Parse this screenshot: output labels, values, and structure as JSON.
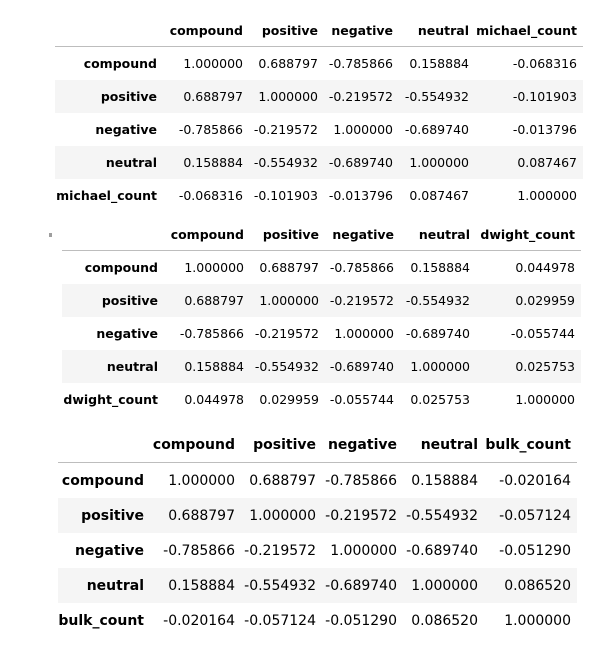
{
  "tables": [
    {
      "headers": [
        "",
        "compound",
        "positive",
        "negative",
        "neutral",
        "michael_count"
      ],
      "rows": [
        {
          "label": "compound",
          "values": [
            "1.000000",
            "0.688797",
            "-0.785866",
            "0.158884",
            "-0.068316"
          ]
        },
        {
          "label": "positive",
          "values": [
            "0.688797",
            "1.000000",
            "-0.219572",
            "-0.554932",
            "-0.101903"
          ]
        },
        {
          "label": "negative",
          "values": [
            "-0.785866",
            "-0.219572",
            "1.000000",
            "-0.689740",
            "-0.013796"
          ]
        },
        {
          "label": "neutral",
          "values": [
            "0.158884",
            "-0.554932",
            "-0.689740",
            "1.000000",
            "0.087467"
          ]
        },
        {
          "label": "michael_count",
          "values": [
            "-0.068316",
            "-0.101903",
            "-0.013796",
            "0.087467",
            "1.000000"
          ]
        }
      ]
    },
    {
      "headers": [
        "",
        "compound",
        "positive",
        "negative",
        "neutral",
        "dwight_count"
      ],
      "rows": [
        {
          "label": "compound",
          "values": [
            "1.000000",
            "0.688797",
            "-0.785866",
            "0.158884",
            "0.044978"
          ]
        },
        {
          "label": "positive",
          "values": [
            "0.688797",
            "1.000000",
            "-0.219572",
            "-0.554932",
            "0.029959"
          ]
        },
        {
          "label": "negative",
          "values": [
            "-0.785866",
            "-0.219572",
            "1.000000",
            "-0.689740",
            "-0.055744"
          ]
        },
        {
          "label": "neutral",
          "values": [
            "0.158884",
            "-0.554932",
            "-0.689740",
            "1.000000",
            "0.025753"
          ]
        },
        {
          "label": "dwight_count",
          "values": [
            "0.044978",
            "0.029959",
            "-0.055744",
            "0.025753",
            "1.000000"
          ]
        }
      ]
    },
    {
      "headers": [
        "",
        "compound",
        "positive",
        "negative",
        "neutral",
        "bulk_count"
      ],
      "rows": [
        {
          "label": "compound",
          "values": [
            "1.000000",
            "0.688797",
            "-0.785866",
            "0.158884",
            "-0.020164"
          ]
        },
        {
          "label": "positive",
          "values": [
            "0.688797",
            "1.000000",
            "-0.219572",
            "-0.554932",
            "-0.057124"
          ]
        },
        {
          "label": "negative",
          "values": [
            "-0.785866",
            "-0.219572",
            "1.000000",
            "-0.689740",
            "-0.051290"
          ]
        },
        {
          "label": "neutral",
          "values": [
            "0.158884",
            "-0.554932",
            "-0.689740",
            "1.000000",
            "0.086520"
          ]
        },
        {
          "label": "bulk_count",
          "values": [
            "-0.020164",
            "-0.057124",
            "-0.051290",
            "0.086520",
            "1.000000"
          ]
        }
      ]
    }
  ],
  "colors": {
    "stripe": "#f5f5f5",
    "header_rule": "#bdbdbd",
    "text": "#000000"
  }
}
